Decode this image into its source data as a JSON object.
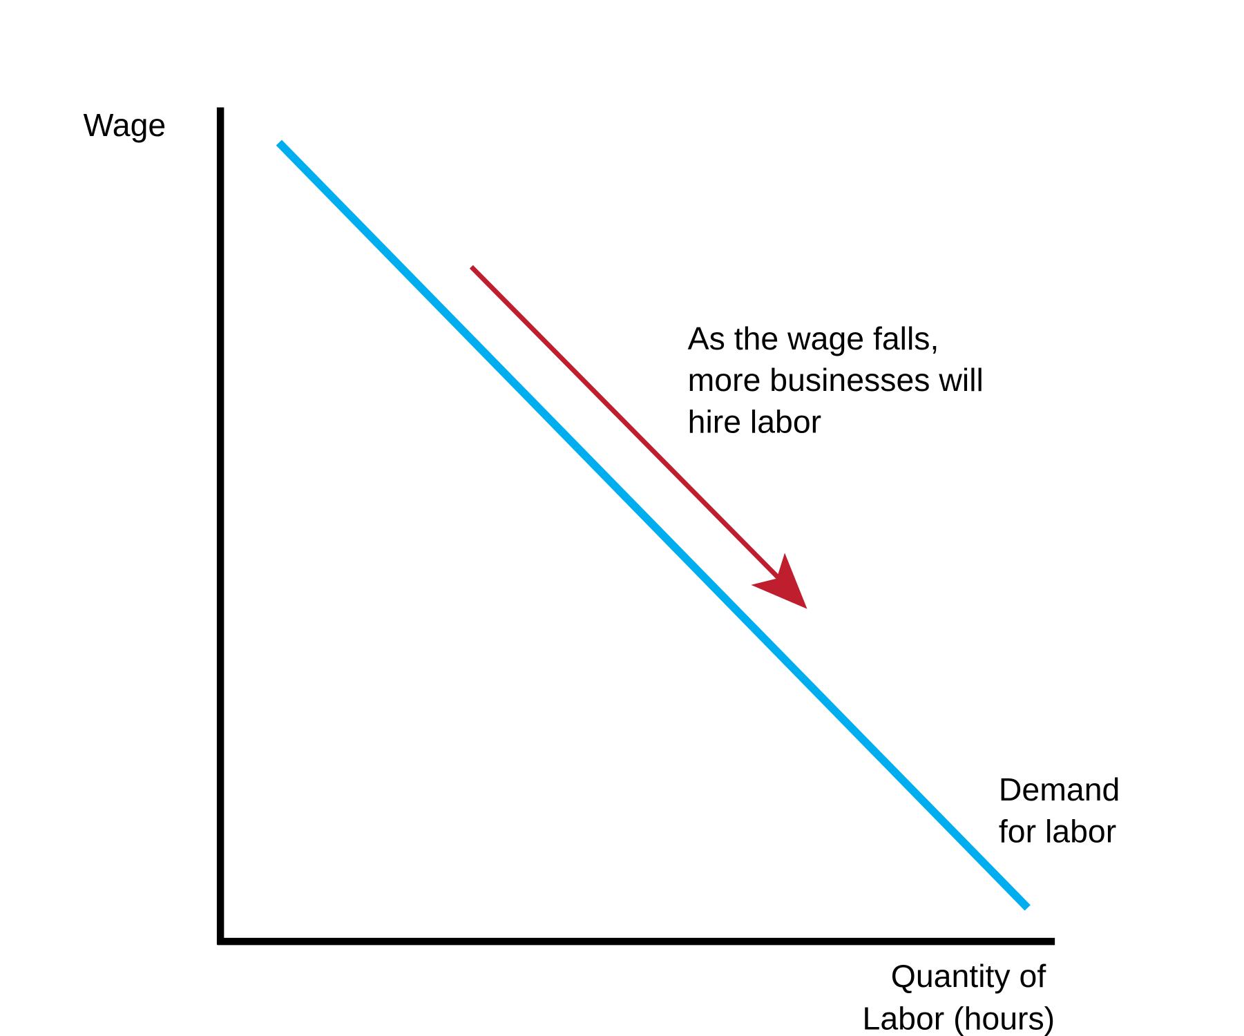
{
  "chart_data": {
    "type": "line",
    "title": "",
    "xlabel": [
      "Quantity of",
      "Labor (hours)"
    ],
    "ylabel": "Wage",
    "grid": false,
    "series": [
      {
        "name": [
          "Demand",
          "for labor"
        ],
        "shape": "downward-sloping straight line",
        "color": "#00AEEF"
      }
    ],
    "annotation": {
      "lines": [
        "As the wage falls,",
        "more businesses will",
        "hire labor"
      ],
      "arrow_direction": "down-right",
      "arrow_color": "#BE1E2D"
    },
    "axis_color": "#000000"
  }
}
